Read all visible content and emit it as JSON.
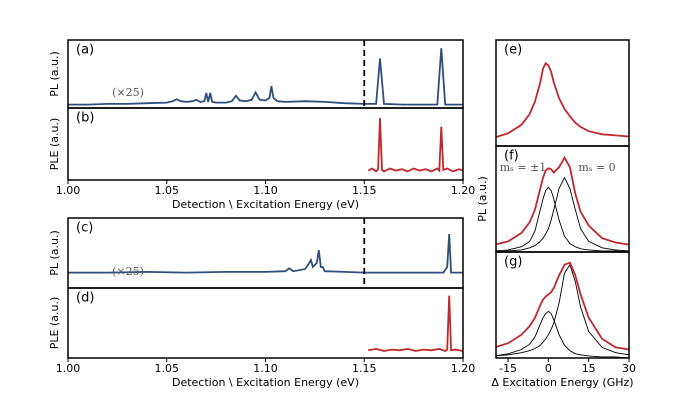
{
  "chart_data": [
    {
      "type": "line",
      "label": "(a)",
      "ylabel": "PL (a.u.)",
      "xlim": [
        1.0,
        1.2
      ],
      "ylim": [
        0,
        1
      ],
      "vline": 1.15,
      "annotations": [
        "(×25)"
      ],
      "x": [
        1.0,
        1.01,
        1.02,
        1.03,
        1.04,
        1.05,
        1.053,
        1.055,
        1.057,
        1.06,
        1.063,
        1.065,
        1.067,
        1.069,
        1.07,
        1.071,
        1.072,
        1.073,
        1.075,
        1.08,
        1.083,
        1.085,
        1.087,
        1.09,
        1.093,
        1.095,
        1.097,
        1.1,
        1.102,
        1.103,
        1.104,
        1.106,
        1.11,
        1.12,
        1.13,
        1.14,
        1.15,
        1.156,
        1.158,
        1.16,
        1.17,
        1.18,
        1.187,
        1.189,
        1.191,
        1.2
      ],
      "series": [
        {
          "color": "#2f4f7a",
          "values": [
            0.05,
            0.05,
            0.06,
            0.06,
            0.07,
            0.08,
            0.1,
            0.13,
            0.1,
            0.09,
            0.1,
            0.12,
            0.09,
            0.1,
            0.22,
            0.09,
            0.22,
            0.09,
            0.08,
            0.08,
            0.1,
            0.18,
            0.11,
            0.1,
            0.12,
            0.23,
            0.12,
            0.11,
            0.15,
            0.32,
            0.15,
            0.1,
            0.09,
            0.1,
            0.09,
            0.07,
            0.06,
            0.06,
            0.73,
            0.06,
            0.05,
            0.05,
            0.05,
            0.88,
            0.05,
            0.05
          ]
        }
      ]
    },
    {
      "type": "line",
      "label": "(b)",
      "ylabel": "PLE (a.u.)",
      "xlabel": "Detection \\ Excitation Energy (eV)",
      "xlim": [
        1.0,
        1.2
      ],
      "ylim": [
        0,
        1
      ],
      "xticks": [
        {
          "value": 1.0,
          "label": "1.00"
        },
        1.05,
        {
          "value": 1.1,
          "label": "1.10"
        },
        1.15,
        {
          "value": 1.2,
          "label": "1.20"
        }
      ],
      "x": [
        1.152,
        1.154,
        1.156,
        1.157,
        1.158,
        1.159,
        1.16,
        1.163,
        1.166,
        1.169,
        1.172,
        1.175,
        1.178,
        1.181,
        1.184,
        1.187,
        1.188,
        1.189,
        1.19,
        1.192,
        1.195,
        1.198,
        1.2
      ],
      "series": [
        {
          "color": "#c0282d",
          "values": [
            0.13,
            0.16,
            0.12,
            0.15,
            0.86,
            0.14,
            0.12,
            0.16,
            0.13,
            0.15,
            0.12,
            0.16,
            0.13,
            0.15,
            0.12,
            0.16,
            0.13,
            0.74,
            0.14,
            0.16,
            0.12,
            0.15,
            0.13
          ]
        }
      ]
    },
    {
      "type": "line",
      "label": "(c)",
      "ylabel": "PL (a.u.)",
      "xlim": [
        1.0,
        1.2
      ],
      "ylim": [
        0,
        1
      ],
      "vline": 1.15,
      "annotations": [
        "(×25)"
      ],
      "x": [
        1.0,
        1.02,
        1.04,
        1.06,
        1.08,
        1.1,
        1.11,
        1.112,
        1.114,
        1.12,
        1.122,
        1.123,
        1.124,
        1.126,
        1.127,
        1.128,
        1.129,
        1.13,
        1.14,
        1.15,
        1.17,
        1.19,
        1.192,
        1.193,
        1.194,
        1.2
      ],
      "series": [
        {
          "color": "#2f4f7a",
          "values": [
            0.22,
            0.22,
            0.23,
            0.22,
            0.23,
            0.23,
            0.24,
            0.28,
            0.24,
            0.27,
            0.35,
            0.4,
            0.3,
            0.36,
            0.54,
            0.3,
            0.3,
            0.24,
            0.23,
            0.22,
            0.22,
            0.22,
            0.3,
            0.77,
            0.22,
            0.22
          ]
        }
      ]
    },
    {
      "type": "line",
      "label": "(d)",
      "ylabel": "PLE (a.u.)",
      "xlabel": "Detection \\ Excitation Energy (eV)",
      "xlim": [
        1.0,
        1.2
      ],
      "ylim": [
        0,
        1
      ],
      "xticks": [
        {
          "value": 1.0,
          "label": "1.00"
        },
        1.05,
        {
          "value": 1.1,
          "label": "1.10"
        },
        1.15,
        {
          "value": 1.2,
          "label": "1.20"
        }
      ],
      "x": [
        1.152,
        1.156,
        1.16,
        1.164,
        1.168,
        1.172,
        1.176,
        1.18,
        1.184,
        1.188,
        1.191,
        1.192,
        1.193,
        1.194,
        1.196,
        1.2
      ],
      "series": [
        {
          "color": "#c0282d",
          "values": [
            0.11,
            0.13,
            0.1,
            0.12,
            0.11,
            0.13,
            0.1,
            0.12,
            0.11,
            0.13,
            0.1,
            0.12,
            0.89,
            0.11,
            0.12,
            0.1
          ]
        }
      ]
    },
    {
      "type": "line",
      "label": "(e)",
      "xlim": [
        -19.5,
        30
      ],
      "ylim": [
        0,
        1
      ],
      "x": [
        -20,
        -15,
        -10,
        -7,
        -5,
        -3,
        -2,
        -1,
        0,
        1,
        2,
        4,
        6,
        8,
        10,
        12,
        15,
        20,
        25,
        30
      ],
      "series": [
        {
          "color": "#c0282d",
          "values": [
            0.08,
            0.12,
            0.2,
            0.3,
            0.42,
            0.6,
            0.73,
            0.78,
            0.76,
            0.7,
            0.6,
            0.45,
            0.35,
            0.28,
            0.22,
            0.18,
            0.14,
            0.11,
            0.1,
            0.09
          ]
        }
      ]
    },
    {
      "type": "line",
      "label": "(f)",
      "ylabel": "PL (a.u.)",
      "xlim": [
        -19.5,
        30
      ],
      "ylim": [
        0,
        1
      ],
      "annotations": [
        "mₛ = ±1",
        "mₛ = 0"
      ],
      "x": [
        -20,
        -15,
        -10,
        -7,
        -5,
        -3,
        -2,
        -1,
        0,
        1,
        2,
        4,
        6,
        8,
        10,
        12,
        15,
        20,
        25,
        30
      ],
      "series": [
        {
          "color": "#000000",
          "values": [
            0.01,
            0.02,
            0.05,
            0.1,
            0.2,
            0.4,
            0.5,
            0.58,
            0.61,
            0.58,
            0.5,
            0.3,
            0.15,
            0.08,
            0.05,
            0.03,
            0.02,
            0.01,
            0.01,
            0
          ]
        },
        {
          "color": "#000000",
          "values": [
            0,
            0.01,
            0.02,
            0.04,
            0.06,
            0.1,
            0.13,
            0.17,
            0.22,
            0.3,
            0.4,
            0.6,
            0.7,
            0.6,
            0.4,
            0.22,
            0.1,
            0.04,
            0.02,
            0.01
          ]
        },
        {
          "color": "#c0282d",
          "values": [
            0.07,
            0.1,
            0.18,
            0.28,
            0.4,
            0.6,
            0.7,
            0.77,
            0.79,
            0.78,
            0.75,
            0.8,
            0.89,
            0.8,
            0.55,
            0.38,
            0.25,
            0.13,
            0.09,
            0.07
          ]
        }
      ]
    },
    {
      "type": "line",
      "label": "(g)",
      "xlabel": "Δ Excitation Energy (GHz)",
      "xlim": [
        -19.5,
        30
      ],
      "ylim": [
        0,
        1
      ],
      "xticks": [
        -15,
        0,
        15,
        30
      ],
      "x": [
        -20,
        -15,
        -10,
        -7,
        -5,
        -3,
        -2,
        -1,
        0,
        1,
        2,
        4,
        6,
        8,
        10,
        12,
        15,
        20,
        25,
        30
      ],
      "series": [
        {
          "color": "#000000",
          "values": [
            0.02,
            0.04,
            0.08,
            0.13,
            0.2,
            0.32,
            0.38,
            0.42,
            0.44,
            0.42,
            0.36,
            0.22,
            0.12,
            0.07,
            0.04,
            0.03,
            0.02,
            0.01,
            0.01,
            0
          ]
        },
        {
          "color": "#000000",
          "values": [
            0.02,
            0.03,
            0.05,
            0.07,
            0.09,
            0.12,
            0.15,
            0.18,
            0.22,
            0.27,
            0.33,
            0.52,
            0.8,
            0.88,
            0.72,
            0.48,
            0.25,
            0.1,
            0.05,
            0.03
          ]
        },
        {
          "color": "#c0282d",
          "values": [
            0.1,
            0.14,
            0.22,
            0.3,
            0.38,
            0.5,
            0.55,
            0.58,
            0.6,
            0.62,
            0.66,
            0.78,
            0.88,
            0.9,
            0.78,
            0.6,
            0.38,
            0.18,
            0.1,
            0.08
          ]
        }
      ]
    }
  ]
}
